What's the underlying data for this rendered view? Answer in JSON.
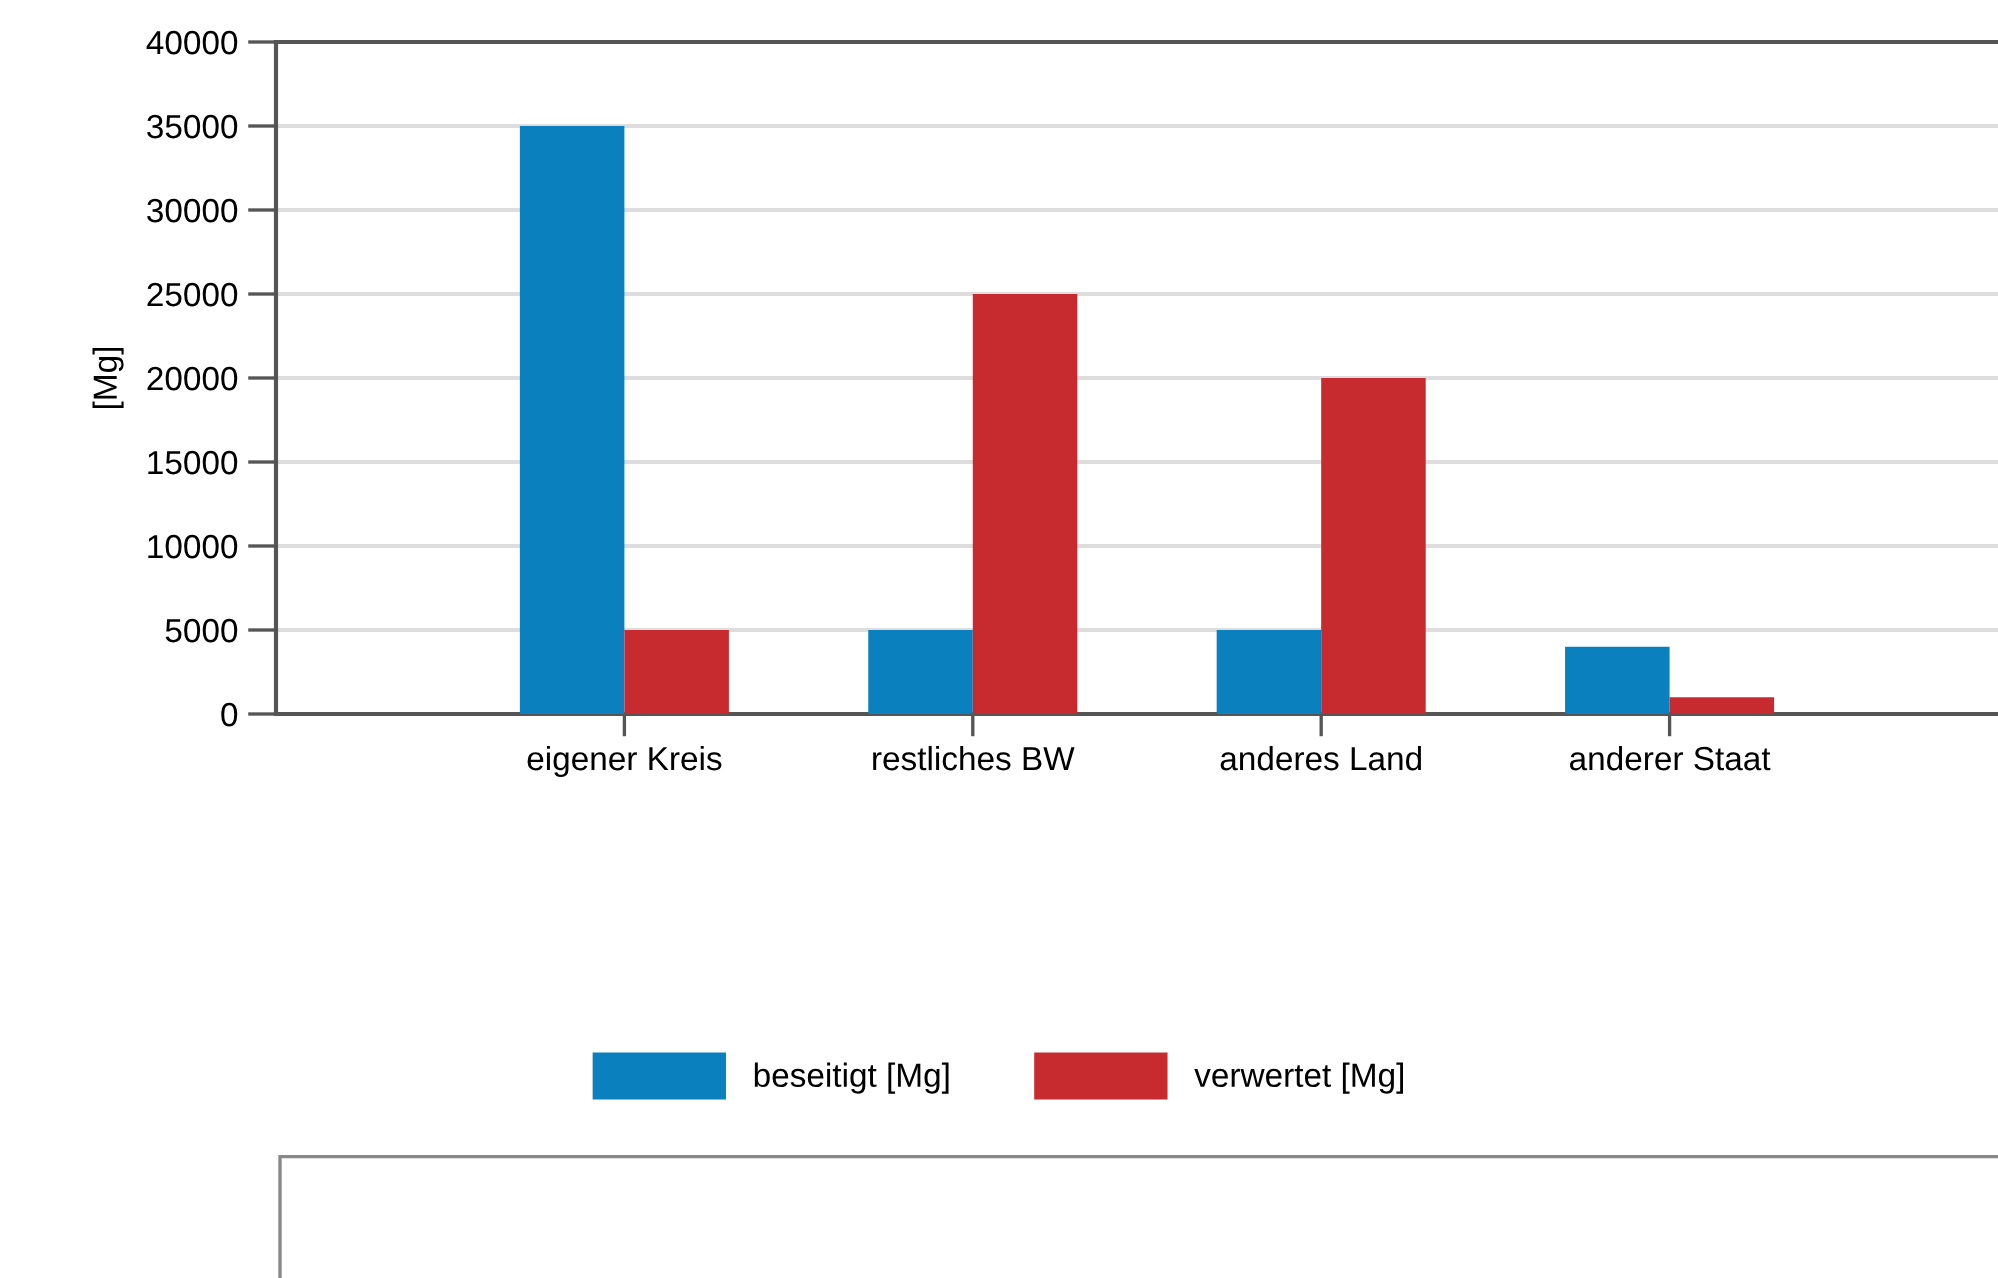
{
  "chart_data": {
    "type": "bar",
    "ylabel": "[Mg]",
    "categories": [
      "eigener Kreis",
      "restliches BW",
      "anderes Land",
      "anderer Staat"
    ],
    "series": [
      {
        "name": "beseitigt [Mg]",
        "color": "#0a80be",
        "values": [
          35000,
          5000,
          5000,
          4000
        ]
      },
      {
        "name": "verwertet [Mg]",
        "color": "#c82b2f",
        "values": [
          5000,
          25000,
          20000,
          1000
        ]
      }
    ],
    "ylim": [
      0,
      40000
    ],
    "yticks": [
      0,
      5000,
      10000,
      15000,
      20000,
      25000,
      30000,
      35000,
      40000
    ],
    "grid": "y",
    "legend": "bottom"
  }
}
